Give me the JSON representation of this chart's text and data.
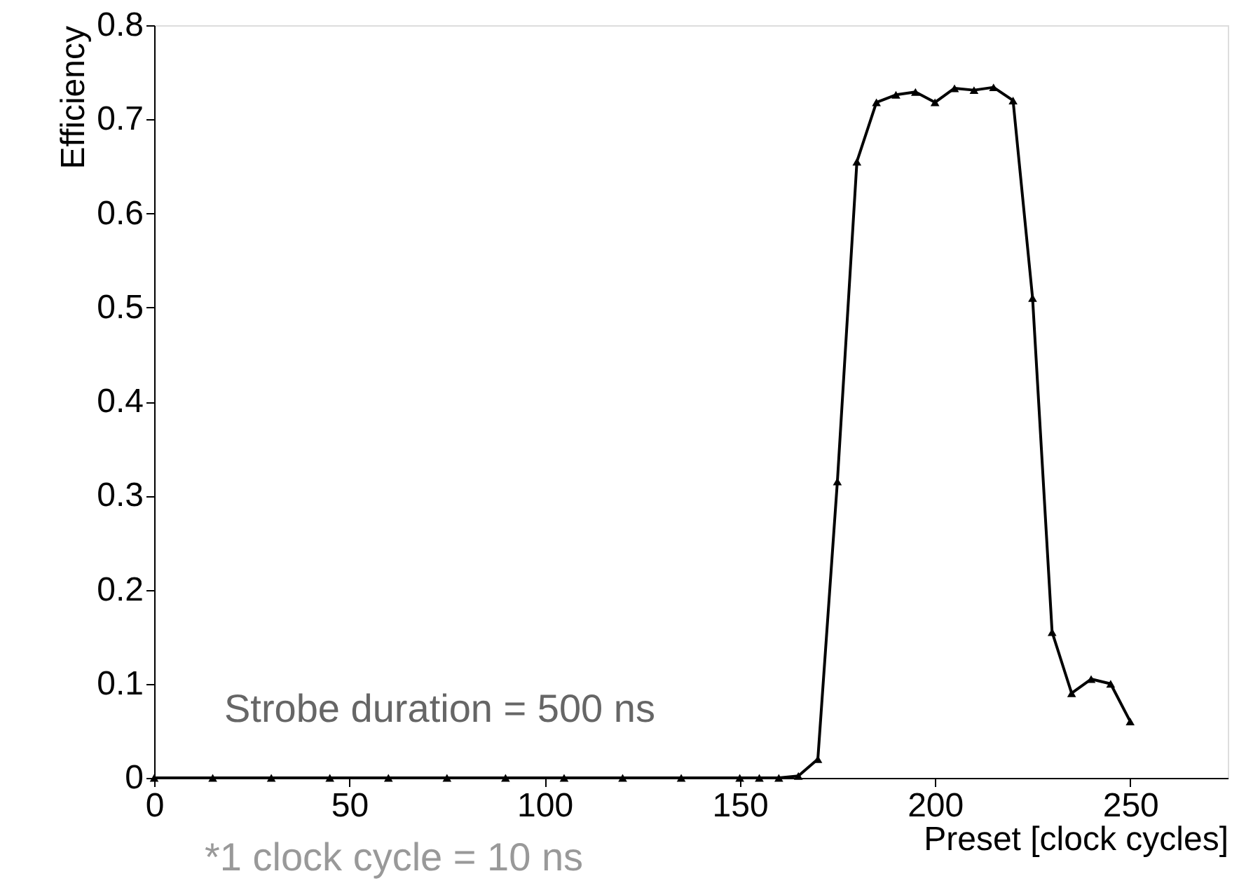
{
  "chart_data": {
    "type": "line",
    "xlabel": "Preset [clock cycles]",
    "ylabel": "Efficiency",
    "x": [
      0,
      15,
      30,
      45,
      60,
      75,
      90,
      105,
      120,
      135,
      150,
      155,
      160,
      165,
      170,
      175,
      180,
      185,
      190,
      195,
      200,
      205,
      210,
      215,
      220,
      225,
      230,
      235,
      240,
      245,
      250
    ],
    "series": [
      {
        "color": "#000000",
        "values": [
          0,
          0,
          0,
          0,
          0,
          0,
          0,
          0,
          0,
          0,
          0,
          0,
          0,
          0.002,
          0.02,
          0.315,
          0.655,
          0.718,
          0.726,
          0.729,
          0.718,
          0.733,
          0.731,
          0.734,
          0.72,
          0.51,
          0.155,
          0.09,
          0.105,
          0.1,
          0.06
        ]
      }
    ],
    "xlim": [
      0,
      275
    ],
    "xticks": [
      0,
      50,
      100,
      150,
      200,
      250
    ],
    "ylim": [
      0,
      0.8
    ],
    "yticks": [
      0,
      0.1,
      0.2,
      0.3,
      0.4,
      0.5,
      0.6,
      0.7,
      0.8
    ],
    "marker": "triangle",
    "line_style": "solid",
    "grid": false,
    "annotations": [
      "Strobe duration = 500 ns",
      "*1 clock cycle = 10 ns"
    ]
  }
}
